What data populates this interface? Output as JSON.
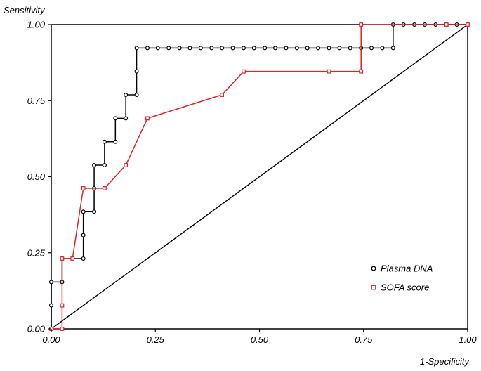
{
  "chart_data": {
    "type": "line",
    "title": "",
    "xlabel": "1-Specificity",
    "ylabel": "Sensitivity",
    "xlim": [
      0,
      1
    ],
    "ylim": [
      0,
      1
    ],
    "x_ticks": [
      "0.00",
      "0.25",
      "0.50",
      "0.75",
      "1.00"
    ],
    "y_ticks": [
      "0.00",
      "0.25",
      "0.50",
      "0.75",
      "1.00"
    ],
    "grid": false,
    "legend_position": "bottom-right",
    "reference_line": {
      "from": [
        0,
        0
      ],
      "to": [
        1,
        1
      ],
      "color": "#000000"
    },
    "series": [
      {
        "name": "Plasma DNA",
        "color": "#000000",
        "marker": "circle",
        "points": [
          [
            0.0,
            0.0
          ],
          [
            0.0,
            0.077
          ],
          [
            0.0,
            0.154
          ],
          [
            0.026,
            0.154
          ],
          [
            0.026,
            0.231
          ],
          [
            0.051,
            0.231
          ],
          [
            0.077,
            0.231
          ],
          [
            0.077,
            0.308
          ],
          [
            0.077,
            0.385
          ],
          [
            0.103,
            0.385
          ],
          [
            0.103,
            0.462
          ],
          [
            0.103,
            0.538
          ],
          [
            0.128,
            0.538
          ],
          [
            0.128,
            0.615
          ],
          [
            0.154,
            0.615
          ],
          [
            0.154,
            0.692
          ],
          [
            0.179,
            0.692
          ],
          [
            0.179,
            0.769
          ],
          [
            0.205,
            0.769
          ],
          [
            0.205,
            0.846
          ],
          [
            0.205,
            0.923
          ],
          [
            0.231,
            0.923
          ],
          [
            0.256,
            0.923
          ],
          [
            0.282,
            0.923
          ],
          [
            0.308,
            0.923
          ],
          [
            0.333,
            0.923
          ],
          [
            0.359,
            0.923
          ],
          [
            0.385,
            0.923
          ],
          [
            0.41,
            0.923
          ],
          [
            0.436,
            0.923
          ],
          [
            0.462,
            0.923
          ],
          [
            0.487,
            0.923
          ],
          [
            0.513,
            0.923
          ],
          [
            0.538,
            0.923
          ],
          [
            0.564,
            0.923
          ],
          [
            0.59,
            0.923
          ],
          [
            0.615,
            0.923
          ],
          [
            0.641,
            0.923
          ],
          [
            0.667,
            0.923
          ],
          [
            0.692,
            0.923
          ],
          [
            0.718,
            0.923
          ],
          [
            0.744,
            0.923
          ],
          [
            0.769,
            0.923
          ],
          [
            0.795,
            0.923
          ],
          [
            0.821,
            0.923
          ],
          [
            0.821,
            1.0
          ],
          [
            0.846,
            1.0
          ],
          [
            0.872,
            1.0
          ],
          [
            0.897,
            1.0
          ],
          [
            0.923,
            1.0
          ],
          [
            0.949,
            1.0
          ],
          [
            0.974,
            1.0
          ],
          [
            1.0,
            1.0
          ]
        ]
      },
      {
        "name": "SOFA score",
        "color": "#e32222",
        "marker": "square",
        "points": [
          [
            0.0,
            0.0
          ],
          [
            0.026,
            0.0
          ],
          [
            0.026,
            0.077
          ],
          [
            0.026,
            0.231
          ],
          [
            0.051,
            0.231
          ],
          [
            0.077,
            0.462
          ],
          [
            0.128,
            0.462
          ],
          [
            0.179,
            0.538
          ],
          [
            0.231,
            0.692
          ],
          [
            0.41,
            0.769
          ],
          [
            0.462,
            0.846
          ],
          [
            0.667,
            0.846
          ],
          [
            0.744,
            0.846
          ],
          [
            0.744,
            1.0
          ],
          [
            0.949,
            1.0
          ],
          [
            1.0,
            1.0
          ]
        ]
      }
    ]
  }
}
